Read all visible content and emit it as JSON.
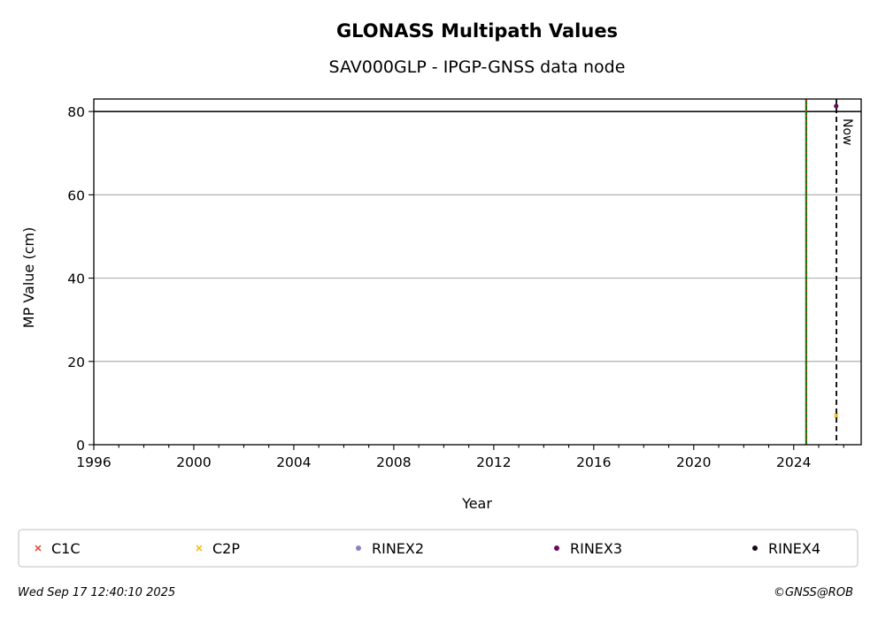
{
  "chart_data": {
    "type": "scatter",
    "title": "GLONASS Multipath Values",
    "subtitle": "SAV000GLP - IPGP-GNSS data node",
    "xlabel": "Year",
    "ylabel": "MP Value (cm)",
    "xlim": [
      1996,
      2026.7
    ],
    "ylim": [
      0,
      83
    ],
    "x_ticks": [
      1996,
      2000,
      2004,
      2008,
      2012,
      2016,
      2020,
      2024
    ],
    "y_ticks": [
      0,
      20,
      40,
      60,
      80
    ],
    "grid": "horizontal",
    "reference_line_y": 80,
    "series": [
      {
        "name": "C1C",
        "marker": "x",
        "color": "#e8402f",
        "points": [
          [
            2025.7,
            7
          ]
        ]
      },
      {
        "name": "C2P",
        "marker": "x",
        "color": "#f5b800",
        "points": [
          [
            2025.7,
            7
          ]
        ]
      },
      {
        "name": "RINEX2",
        "marker": "dot",
        "color": "#8b7fc0",
        "points": []
      },
      {
        "name": "RINEX3",
        "marker": "dot",
        "color": "#6b0a5e",
        "points": [
          [
            2025.7,
            81.3
          ]
        ]
      },
      {
        "name": "RINEX4",
        "marker": "dot",
        "color": "#1a0a1a",
        "points": []
      }
    ],
    "vertical_lines": [
      {
        "x": 2024.5,
        "color": "#008000",
        "style": "solid"
      },
      {
        "x": 2024.5,
        "color": "#d62728",
        "style": "dotted"
      },
      {
        "x": 2025.71,
        "color": "#000000",
        "style": "dashed",
        "label": "Now"
      }
    ],
    "legend_placement": "bottom"
  },
  "footer": {
    "timestamp": "Wed Sep 17 12:40:10 2025",
    "copyright": "©GNSS@ROB"
  }
}
